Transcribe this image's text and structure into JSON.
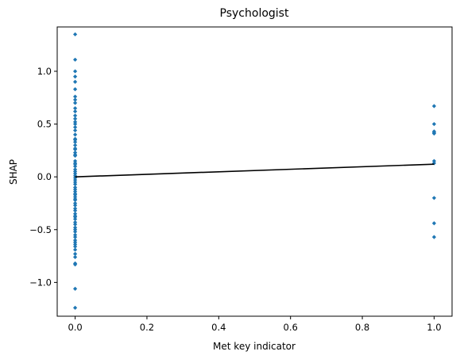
{
  "chart_data": {
    "type": "scatter",
    "title": "Psychologist",
    "xlabel": "Met key indicator",
    "ylabel": "SHAP",
    "xlim": [
      -0.05,
      1.05
    ],
    "ylim": [
      -1.32,
      1.42
    ],
    "xticks": [
      0.0,
      0.2,
      0.4,
      0.6,
      0.8,
      1.0
    ],
    "xtick_labels": [
      "0.0",
      "0.2",
      "0.4",
      "0.6",
      "0.8",
      "1.0"
    ],
    "yticks": [
      -1.0,
      -0.5,
      0.0,
      0.5,
      1.0
    ],
    "ytick_labels": [
      "−1.0",
      "−0.5",
      "0.0",
      "0.5",
      "1.0"
    ],
    "grid": false,
    "marker_color": "#1f77b4",
    "line_color": "#000000",
    "series": [
      {
        "type": "scatter",
        "x": [
          0,
          0,
          0,
          0,
          0,
          0,
          0,
          0,
          0,
          0,
          0,
          0,
          0,
          0,
          0,
          0,
          0,
          0,
          0,
          0,
          0,
          0,
          0,
          0,
          0,
          0,
          0,
          0,
          0,
          0,
          0,
          0,
          0,
          0,
          0,
          0,
          0,
          0,
          0,
          0,
          0,
          0,
          0,
          0,
          0,
          0,
          0,
          0,
          0,
          0,
          0,
          0,
          0,
          0,
          0,
          0,
          0,
          0,
          0,
          0,
          0,
          0,
          0,
          0,
          0,
          0,
          0,
          0,
          0,
          0,
          0,
          0,
          0,
          1,
          1,
          1,
          1,
          1,
          1,
          1,
          1,
          1,
          1
        ],
        "y": [
          1.35,
          1.11,
          1.0,
          0.95,
          0.9,
          0.83,
          0.76,
          0.73,
          0.7,
          0.65,
          0.62,
          0.58,
          0.55,
          0.52,
          0.5,
          0.47,
          0.44,
          0.4,
          0.36,
          0.33,
          0.3,
          0.26,
          0.23,
          0.2,
          0.15,
          0.13,
          0.1,
          0.05,
          0.03,
          0.01,
          -0.01,
          -0.03,
          -0.05,
          -0.07,
          -0.1,
          -0.12,
          -0.14,
          -0.17,
          -0.19,
          -0.22,
          -0.25,
          -0.27,
          -0.3,
          -0.32,
          -0.35,
          -0.38,
          -0.4,
          -0.43,
          -0.45,
          -0.48,
          -0.5,
          -0.52,
          -0.55,
          -0.57,
          -0.6,
          -0.62,
          -0.64,
          -0.66,
          -0.69,
          -0.73,
          -0.76,
          -0.82,
          -0.83,
          -1.06,
          -1.24,
          -0.16,
          -0.21,
          0.07,
          0.21,
          0.35,
          0.27,
          -0.37,
          0.12,
          0.67,
          0.5,
          0.43,
          0.41,
          0.15,
          0.13,
          -0.2,
          -0.44,
          -0.57,
          0.42
        ]
      },
      {
        "type": "line",
        "x": [
          0,
          1
        ],
        "y": [
          0.0,
          0.12
        ]
      }
    ]
  }
}
